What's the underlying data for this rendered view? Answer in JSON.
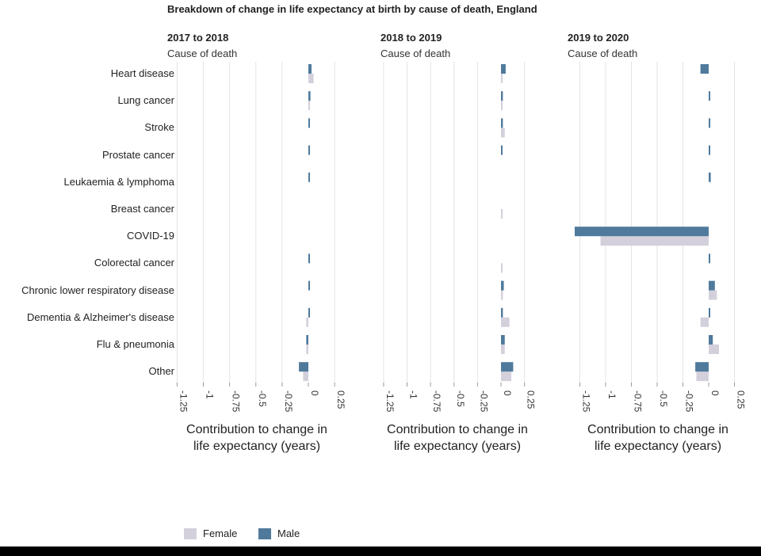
{
  "title": "Breakdown of change in life expectancy at birth by cause of death, England",
  "categories_heading": "Cause of death",
  "categories": [
    "Heart disease",
    "Lung cancer",
    "Stroke",
    "Prostate cancer",
    "Leukaemia & lymphoma",
    "Breast cancer",
    "COVID-19",
    "Colorectal cancer",
    "Chronic lower respiratory disease",
    "Dementia & Alzheimer's disease",
    "Flu & pneumonia",
    "Other"
  ],
  "xlabel_line1": "Contribution to change in",
  "xlabel_line2": "life expectancy (years)",
  "ticks": [
    "-1.25",
    "-1",
    "-0.75",
    "-0.5",
    "-0.25",
    "0",
    "0.25"
  ],
  "legend": {
    "female": "Female",
    "male": "Male"
  },
  "colors": {
    "female": "#d3d0dc",
    "male": "#4f7a9c"
  },
  "chart_data": [
    {
      "type": "bar",
      "title": "2017 to 2018",
      "xlim": [
        -1.3,
        0.3
      ],
      "series": [
        {
          "name": "Male",
          "values": [
            0.03,
            0.02,
            0.01,
            0.01,
            0.01,
            0.0,
            0.0,
            0.01,
            0.01,
            0.01,
            -0.02,
            -0.09
          ]
        },
        {
          "name": "Female",
          "values": [
            0.05,
            0.01,
            0.0,
            0.0,
            0.0,
            0.0,
            0.0,
            0.0,
            0.0,
            -0.02,
            -0.02,
            -0.05
          ]
        }
      ]
    },
    {
      "type": "bar",
      "title": "2018 to 2019",
      "xlim": [
        -1.3,
        0.3
      ],
      "series": [
        {
          "name": "Male",
          "values": [
            0.05,
            0.02,
            0.02,
            0.01,
            0.0,
            0.0,
            0.0,
            0.0,
            0.03,
            0.02,
            0.04,
            0.13
          ]
        },
        {
          "name": "Female",
          "values": [
            0.01,
            0.01,
            0.04,
            0.0,
            0.0,
            0.01,
            0.0,
            0.01,
            0.02,
            0.09,
            0.04,
            0.11
          ]
        }
      ]
    },
    {
      "type": "bar",
      "title": "2019 to 2020",
      "xlim": [
        -1.3,
        0.3
      ],
      "series": [
        {
          "name": "Male",
          "values": [
            -0.08,
            0.01,
            0.01,
            0.01,
            0.02,
            0.0,
            -1.3,
            0.01,
            0.06,
            0.01,
            0.04,
            -0.13
          ]
        },
        {
          "name": "Female",
          "values": [
            0.0,
            0.0,
            0.0,
            0.0,
            0.0,
            0.0,
            -1.05,
            0.0,
            0.08,
            -0.08,
            0.1,
            -0.12
          ]
        }
      ]
    }
  ]
}
